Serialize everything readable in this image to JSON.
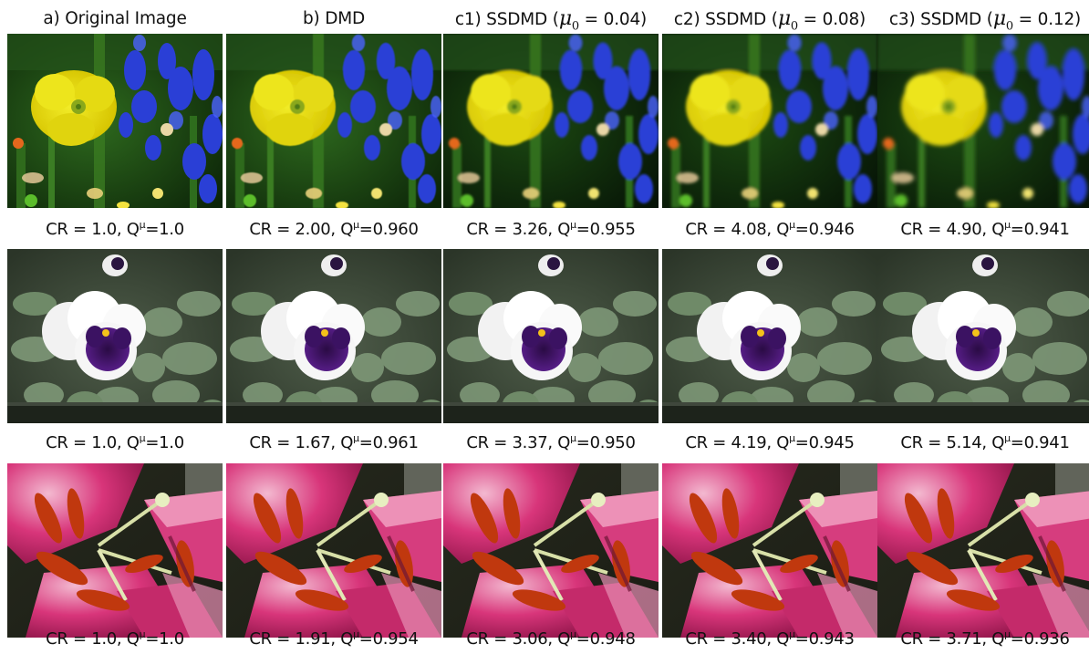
{
  "columns": [
    {
      "prefix": "a) Original Image",
      "mu_value": ""
    },
    {
      "prefix": "b) DMD",
      "mu_value": ""
    },
    {
      "prefix": "c1) SSDMD (",
      "mu_value": " = 0.04)"
    },
    {
      "prefix": "c2) SSDMD (",
      "mu_value": " = 0.08)"
    },
    {
      "prefix": "c3) SSDMD (",
      "mu_value": " = 0.12)"
    }
  ],
  "mu_symbol": "μ",
  "mu_subscript": "0",
  "q_symbol": "Q",
  "q_superscript": "μ",
  "rows": [
    {
      "subject": "yellow-flower",
      "captions": [
        {
          "cr": "CR = 1.0,",
          "q": "=1.0"
        },
        {
          "cr": "CR = 2.00,",
          "q": "=0.960"
        },
        {
          "cr": "CR = 3.26,",
          "q": "=0.955"
        },
        {
          "cr": "CR = 4.08,",
          "q": "=0.946"
        },
        {
          "cr": "CR = 4.90,",
          "q": "=0.941"
        }
      ]
    },
    {
      "subject": "pansy",
      "captions": [
        {
          "cr": "CR = 1.0,",
          "q": "=1.0"
        },
        {
          "cr": "CR = 1.67,",
          "q": "=0.961"
        },
        {
          "cr": "CR = 3.37,",
          "q": "=0.950"
        },
        {
          "cr": "CR = 4.19,",
          "q": "=0.945"
        },
        {
          "cr": "CR = 5.14,",
          "q": "=0.941"
        }
      ]
    },
    {
      "subject": "lily",
      "captions": [
        {
          "cr": "CR = 1.0,",
          "q": "=1.0"
        },
        {
          "cr": "CR = 1.91,",
          "q": "=0.954"
        },
        {
          "cr": "CR = 3.06,",
          "q": "=0.948"
        },
        {
          "cr": "CR = 3.40,",
          "q": "=0.943"
        },
        {
          "cr": "CR = 3.71,",
          "q": "=0.936"
        }
      ]
    }
  ]
}
